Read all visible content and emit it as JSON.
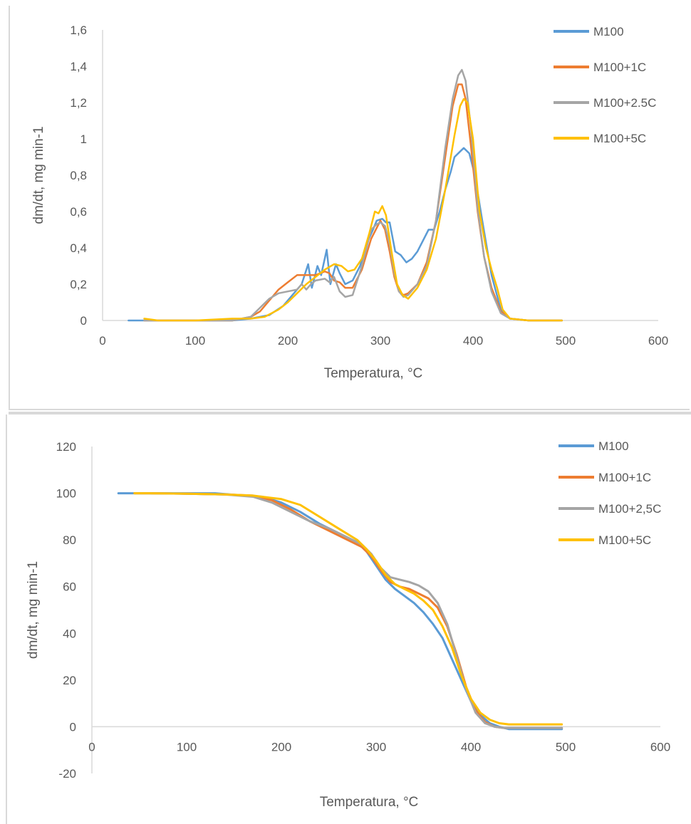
{
  "chart_data": [
    {
      "type": "line",
      "xlabel": "Temperatura, °C",
      "ylabel": "dm/dt, mg min-1",
      "xlim": [
        0,
        600
      ],
      "ylim": [
        0,
        1.6
      ],
      "xticks": [
        "0",
        "100",
        "200",
        "300",
        "400",
        "500",
        "600"
      ],
      "yticks": [
        "0",
        "0,2",
        "0,4",
        "0,6",
        "0,8",
        "1",
        "1,2",
        "1,4",
        "1,6"
      ],
      "grid": false,
      "legend_position": "top-right",
      "series": [
        {
          "name": "M100",
          "color": "#5b9bd5",
          "x": [
            28,
            40,
            60,
            100,
            140,
            160,
            180,
            195,
            205,
            215,
            222,
            226,
            232,
            236,
            242,
            246,
            252,
            256,
            262,
            270,
            278,
            285,
            292,
            296,
            302,
            306,
            310,
            316,
            322,
            328,
            334,
            340,
            346,
            352,
            358,
            364,
            370,
            376,
            380,
            386,
            390,
            396,
            402,
            410,
            420,
            430,
            440,
            460,
            496
          ],
          "y": [
            0,
            0,
            0,
            0,
            0,
            0.01,
            0.03,
            0.08,
            0.14,
            0.2,
            0.31,
            0.18,
            0.3,
            0.25,
            0.39,
            0.2,
            0.31,
            0.26,
            0.2,
            0.22,
            0.3,
            0.42,
            0.5,
            0.55,
            0.56,
            0.54,
            0.54,
            0.38,
            0.36,
            0.32,
            0.34,
            0.38,
            0.44,
            0.5,
            0.5,
            0.6,
            0.72,
            0.82,
            0.9,
            0.93,
            0.95,
            0.92,
            0.8,
            0.55,
            0.25,
            0.06,
            0.01,
            0,
            0
          ]
        },
        {
          "name": "M100+1C",
          "color": "#ed7d31",
          "x": [
            45,
            60,
            100,
            140,
            160,
            170,
            180,
            190,
            200,
            210,
            220,
            230,
            240,
            245,
            250,
            256,
            262,
            270,
            280,
            290,
            300,
            305,
            310,
            315,
            320,
            325,
            330,
            340,
            350,
            360,
            370,
            378,
            384,
            388,
            392,
            398,
            405,
            412,
            420,
            430,
            440,
            460,
            496
          ],
          "y": [
            0,
            0,
            0,
            0,
            0.02,
            0.05,
            0.11,
            0.17,
            0.21,
            0.25,
            0.25,
            0.25,
            0.27,
            0.26,
            0.22,
            0.21,
            0.18,
            0.18,
            0.28,
            0.45,
            0.55,
            0.5,
            0.38,
            0.24,
            0.16,
            0.14,
            0.15,
            0.2,
            0.32,
            0.55,
            0.9,
            1.18,
            1.3,
            1.3,
            1.22,
            0.95,
            0.6,
            0.35,
            0.18,
            0.05,
            0.01,
            0,
            0
          ]
        },
        {
          "name": "M100+2.5C",
          "color": "#a5a5a5",
          "x": [
            45,
            60,
            100,
            140,
            160,
            170,
            180,
            190,
            200,
            210,
            215,
            220,
            225,
            230,
            240,
            245,
            250,
            256,
            262,
            270,
            280,
            290,
            296,
            300,
            305,
            310,
            315,
            320,
            325,
            330,
            340,
            350,
            360,
            370,
            378,
            384,
            388,
            392,
            398,
            405,
            412,
            420,
            430,
            440,
            460,
            496
          ],
          "y": [
            0,
            0,
            0,
            0,
            0.02,
            0.07,
            0.12,
            0.15,
            0.16,
            0.17,
            0.2,
            0.17,
            0.2,
            0.22,
            0.23,
            0.21,
            0.24,
            0.16,
            0.13,
            0.14,
            0.3,
            0.5,
            0.53,
            0.54,
            0.52,
            0.42,
            0.26,
            0.16,
            0.13,
            0.14,
            0.2,
            0.3,
            0.55,
            0.95,
            1.22,
            1.35,
            1.38,
            1.32,
            1.05,
            0.62,
            0.35,
            0.16,
            0.04,
            0.01,
            0,
            0
          ]
        },
        {
          "name": "M100+5C",
          "color": "#ffc000",
          "x": [
            45,
            60,
            100,
            140,
            160,
            175,
            190,
            200,
            210,
            220,
            230,
            240,
            250,
            258,
            265,
            272,
            280,
            288,
            294,
            298,
            302,
            306,
            312,
            318,
            324,
            330,
            340,
            350,
            360,
            370,
            380,
            386,
            390,
            394,
            400,
            407,
            414,
            420,
            426,
            432,
            440,
            460,
            496
          ],
          "y": [
            0.01,
            0,
            0,
            0.01,
            0.01,
            0.02,
            0.06,
            0.1,
            0.15,
            0.2,
            0.24,
            0.28,
            0.31,
            0.3,
            0.27,
            0.28,
            0.34,
            0.48,
            0.6,
            0.59,
            0.63,
            0.58,
            0.38,
            0.2,
            0.14,
            0.12,
            0.18,
            0.28,
            0.45,
            0.72,
            1.02,
            1.18,
            1.22,
            1.2,
            1.0,
            0.6,
            0.4,
            0.28,
            0.18,
            0.06,
            0.01,
            0,
            0
          ]
        }
      ]
    },
    {
      "type": "line",
      "xlabel": "Temperatura, °C",
      "ylabel": "dm/dt, mg min-1",
      "xlim": [
        0,
        600
      ],
      "ylim": [
        -20,
        120
      ],
      "xticks": [
        "0",
        "100",
        "200",
        "300",
        "400",
        "500",
        "600"
      ],
      "yticks": [
        "-20",
        "0",
        "20",
        "40",
        "60",
        "80",
        "100",
        "120"
      ],
      "grid": false,
      "legend_position": "top-right",
      "series": [
        {
          "name": "M100",
          "color": "#5b9bd5",
          "x": [
            28,
            60,
            100,
            130,
            160,
            180,
            200,
            220,
            240,
            260,
            280,
            290,
            300,
            310,
            320,
            330,
            340,
            350,
            360,
            370,
            380,
            390,
            400,
            410,
            420,
            430,
            440,
            460,
            496
          ],
          "y": [
            100,
            100,
            100,
            100,
            99,
            98.5,
            96,
            92,
            87,
            83,
            79,
            75,
            69,
            63,
            59,
            56,
            53,
            49,
            44,
            38,
            29,
            20,
            11,
            5,
            1.5,
            0,
            -1,
            -1,
            -1
          ]
        },
        {
          "name": "M100+1C",
          "color": "#ed7d31",
          "x": [
            45,
            60,
            100,
            140,
            170,
            190,
            210,
            230,
            250,
            270,
            285,
            295,
            305,
            315,
            325,
            335,
            345,
            355,
            365,
            375,
            385,
            395,
            405,
            415,
            425,
            435,
            460,
            496
          ],
          "y": [
            100,
            100,
            99.8,
            99.5,
            99,
            97,
            93,
            88,
            84,
            80,
            77,
            73,
            67,
            62,
            60,
            59,
            57,
            55,
            51,
            43,
            31,
            17,
            7,
            2,
            0,
            -0.5,
            -0.5,
            -0.5
          ]
        },
        {
          "name": "M100+2,5C",
          "color": "#a5a5a5",
          "x": [
            45,
            60,
            100,
            140,
            170,
            190,
            210,
            230,
            250,
            270,
            285,
            295,
            305,
            315,
            325,
            335,
            345,
            355,
            365,
            375,
            385,
            395,
            405,
            415,
            425,
            435,
            460,
            496
          ],
          "y": [
            100,
            100,
            99.8,
            99.5,
            98.5,
            96,
            92,
            88,
            85,
            81,
            78,
            74,
            68,
            64,
            63,
            62,
            60.5,
            58,
            53,
            44,
            30,
            16,
            6,
            1.5,
            0,
            -0.5,
            -0.5,
            -0.5
          ]
        },
        {
          "name": "M100+5C",
          "color": "#ffc000",
          "x": [
            45,
            60,
            100,
            140,
            170,
            200,
            220,
            240,
            260,
            280,
            290,
            300,
            310,
            320,
            330,
            340,
            350,
            360,
            370,
            380,
            390,
            400,
            410,
            420,
            430,
            440,
            460,
            496
          ],
          "y": [
            100,
            100,
            99.8,
            99.5,
            99,
            97.5,
            95,
            90,
            85,
            80,
            76,
            71,
            65,
            61,
            59,
            57,
            54,
            50,
            43,
            34,
            22,
            12,
            6,
            3,
            1.5,
            1,
            1,
            1
          ]
        }
      ]
    }
  ]
}
